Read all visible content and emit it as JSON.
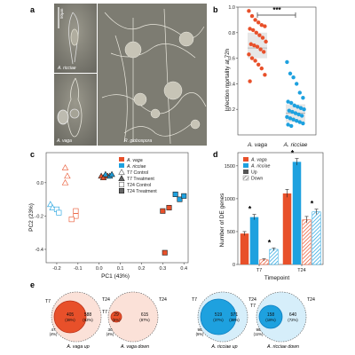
{
  "panel_letters": {
    "a": "a",
    "b": "b",
    "c": "c",
    "d": "d",
    "e": "e"
  },
  "colors": {
    "vaga": "#e8502a",
    "ricciae": "#1ea1df",
    "dark_red": "#b8321a",
    "blue_dark": "#0f7fc0",
    "photo_bg": "#7e7d74"
  },
  "micrographs": {
    "scale_bar": "50µm",
    "labels": [
      "A. ricciae",
      "A. vaga",
      "R. globospora"
    ]
  },
  "chart_data": [
    {
      "type": "scatter",
      "panel": "b",
      "ylabel": "Infection mortality at 72h",
      "categories": [
        "A. vaga",
        "A. ricciae"
      ],
      "significance": "***",
      "ylim": [
        0,
        1.0
      ],
      "yticks": [
        "0.2",
        "0.4",
        "0.6",
        "0.8",
        "1.0"
      ],
      "series": [
        {
          "name": "A. vaga",
          "box": {
            "q1": 0.6,
            "median": 0.68,
            "q3": 0.8
          },
          "values": [
            0.97,
            0.93,
            0.9,
            0.88,
            0.86,
            0.85,
            0.83,
            0.82,
            0.8,
            0.78,
            0.76,
            0.73,
            0.71,
            0.7,
            0.69,
            0.67,
            0.65,
            0.63,
            0.6,
            0.58,
            0.55,
            0.52,
            0.47,
            0.42
          ]
        },
        {
          "name": "A. ricciae",
          "box": {
            "q1": 0.1,
            "median": 0.17,
            "q3": 0.24
          },
          "values": [
            0.57,
            0.48,
            0.45,
            0.4,
            0.33,
            0.29,
            0.26,
            0.25,
            0.23,
            0.22,
            0.21,
            0.2,
            0.19,
            0.18,
            0.17,
            0.16,
            0.15,
            0.14,
            0.13,
            0.12,
            0.11,
            0.1,
            0.09,
            0.08,
            0.07
          ]
        }
      ]
    },
    {
      "type": "scatter",
      "panel": "c",
      "xlabel": "PC1 (43%)",
      "ylabel": "PC2 (23%)",
      "xlim": [
        -0.25,
        0.42
      ],
      "ylim": [
        -0.48,
        0.18
      ],
      "xticks": [
        "-0.2",
        "-0.1",
        "0.0",
        "0.1",
        "0.2",
        "0.3",
        "0.4"
      ],
      "yticks": [
        "-0.4",
        "-0.2",
        "0.0"
      ],
      "legend": [
        "A. vaga",
        "A. ricciae",
        "T7 Control",
        "T7 Treatment",
        "T24 Control",
        "T24 Treatment"
      ],
      "points": [
        {
          "species": "vaga",
          "group": "T7 Control",
          "x": -0.16,
          "y": 0.09
        },
        {
          "species": "vaga",
          "group": "T7 Control",
          "x": -0.15,
          "y": 0.04
        },
        {
          "species": "vaga",
          "group": "T7 Control",
          "x": -0.16,
          "y": 0.0
        },
        {
          "species": "vaga",
          "group": "T24 Control",
          "x": -0.11,
          "y": -0.17
        },
        {
          "species": "vaga",
          "group": "T24 Control",
          "x": -0.11,
          "y": -0.2
        },
        {
          "species": "vaga",
          "group": "T24 Control",
          "x": -0.13,
          "y": -0.22
        },
        {
          "species": "vaga",
          "group": "T7 Treatment",
          "x": 0.01,
          "y": 0.04
        },
        {
          "species": "vaga",
          "group": "T7 Treatment",
          "x": 0.02,
          "y": 0.03
        },
        {
          "species": "vaga",
          "group": "T7 Treatment",
          "x": 0.04,
          "y": 0.04
        },
        {
          "species": "vaga",
          "group": "T24 Treatment",
          "x": 0.3,
          "y": -0.17
        },
        {
          "species": "vaga",
          "group": "T24 Treatment",
          "x": 0.33,
          "y": -0.15
        },
        {
          "species": "vaga",
          "group": "T24 Treatment",
          "x": 0.31,
          "y": -0.42
        },
        {
          "species": "ricciae",
          "group": "T7 Control",
          "x": -0.23,
          "y": -0.13
        },
        {
          "species": "ricciae",
          "group": "T7 Control",
          "x": -0.22,
          "y": -0.15
        },
        {
          "species": "ricciae",
          "group": "T24 Control",
          "x": -0.2,
          "y": -0.16
        },
        {
          "species": "ricciae",
          "group": "T24 Control",
          "x": -0.19,
          "y": -0.18
        },
        {
          "species": "ricciae",
          "group": "T7 Treatment",
          "x": 0.03,
          "y": 0.05
        },
        {
          "species": "ricciae",
          "group": "T7 Treatment",
          "x": 0.05,
          "y": 0.04
        },
        {
          "species": "ricciae",
          "group": "T7 Treatment",
          "x": 0.06,
          "y": 0.05
        },
        {
          "species": "ricciae",
          "group": "T24 Treatment",
          "x": 0.36,
          "y": -0.07
        },
        {
          "species": "ricciae",
          "group": "T24 Treatment",
          "x": 0.38,
          "y": -0.1
        },
        {
          "species": "ricciae",
          "group": "T24 Treatment",
          "x": 0.4,
          "y": -0.08
        }
      ]
    },
    {
      "type": "bar",
      "panel": "d",
      "xlabel": "Timepoint",
      "ylabel": "Number of DE genes",
      "categories": [
        "T7",
        "T24"
      ],
      "ylim": [
        0,
        1700
      ],
      "yticks": [
        "0",
        "500",
        "1000",
        "1500"
      ],
      "legend": [
        "A. vaga",
        "A. ricciae",
        "Up",
        "Down"
      ],
      "series": [
        {
          "name": "A. vaga Up",
          "species": "vaga",
          "direction": "Up",
          "values": [
            470,
            1080
          ],
          "errors": [
            30,
            60
          ]
        },
        {
          "name": "A. ricciae Up",
          "species": "ricciae",
          "direction": "Up",
          "values": [
            720,
            1560
          ],
          "errors": [
            40,
            50
          ]
        },
        {
          "name": "A. vaga Down",
          "species": "vaga",
          "direction": "Down",
          "values": [
            70,
            680
          ],
          "errors": [
            15,
            50
          ]
        },
        {
          "name": "A. ricciae Down",
          "species": "ricciae",
          "direction": "Down",
          "values": [
            230,
            800
          ],
          "errors": [
            20,
            40
          ]
        }
      ],
      "stars": [
        "*",
        "*",
        "*",
        "*"
      ]
    }
  ],
  "venns": [
    {
      "caption": "A. vaga up",
      "species": "vaga",
      "direction": "up",
      "t7": "T7",
      "t24": "T24",
      "inner_count": "405",
      "inner_pct": "(38%)",
      "outer_count": "588",
      "outer_pct": "(62%)",
      "only_count": "47",
      "only_pct": "(4%)"
    },
    {
      "caption": "A. vaga down",
      "species": "vaga",
      "direction": "down",
      "t7": "T7",
      "t24": "T24",
      "inner_count": "29",
      "inner_pct": "(5%)",
      "outer_count": "615",
      "outer_pct": "(87%)",
      "only_count": "30",
      "only_pct": "(4%)"
    },
    {
      "caption": "A. ricciae up",
      "species": "ricciae",
      "direction": "up",
      "t7": "T7",
      "t24": "T24",
      "inner_count": "519",
      "inner_pct": "(37%)",
      "outer_count": "971",
      "outer_pct": "(38%)",
      "only_count": "95",
      "only_pct": "(5%)"
    },
    {
      "caption": "A. ricciae down",
      "species": "ricciae",
      "direction": "down",
      "t7": "T7",
      "t24": "T24",
      "inner_count": "158",
      "inner_pct": "(18%)",
      "outer_count": "640",
      "outer_pct": "(72%)",
      "only_count": "95",
      "only_pct": "(11%)"
    }
  ]
}
